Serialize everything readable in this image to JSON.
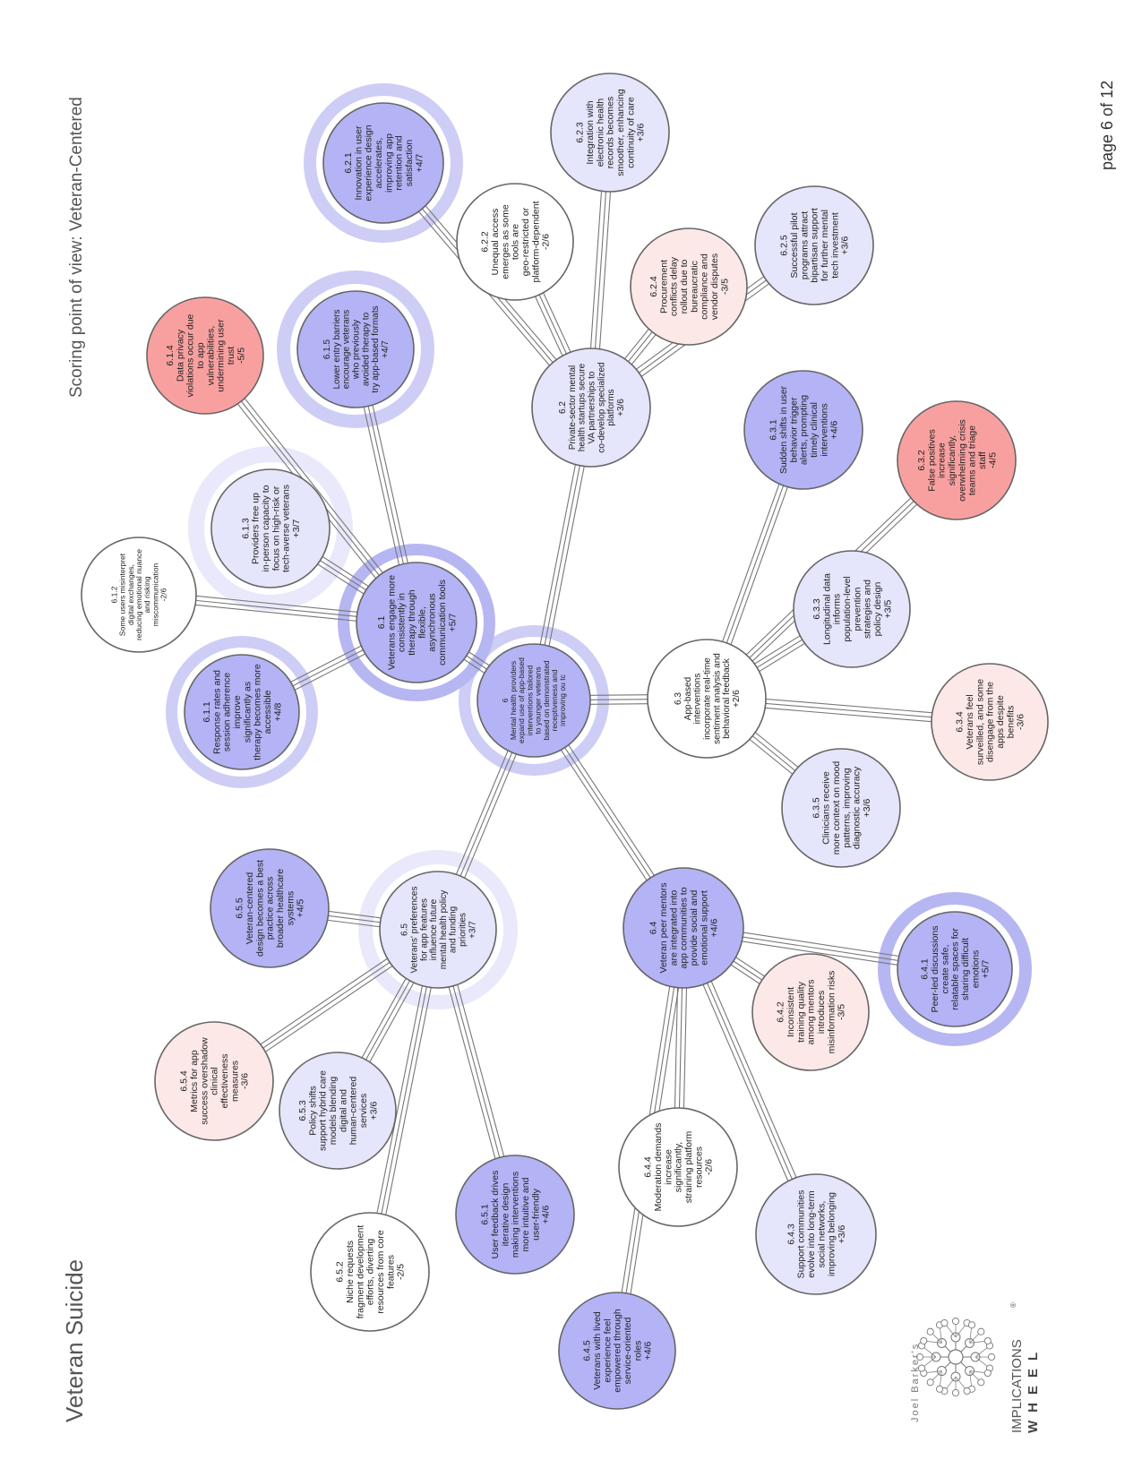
{
  "page": {
    "title": "Veteran Suicide",
    "scoring_point_of_view": "Scoring point of view: Veteran-Centered",
    "page_number": "page 6 of 12"
  },
  "logo": {
    "author": "Joel Barker's",
    "line1": "IMPLICATIONS",
    "line2": "WHEEL",
    "mark": "®"
  },
  "colors": {
    "strong_positive": "#b3b3f5",
    "mild_positive": "#e5e5fb",
    "neutral": "#ffffff",
    "mild_negative": "#fde8e8",
    "strong_negative": "#f8a0a0",
    "ring_strong": "#b6b6f2",
    "ring_medium": "#cdcdf6",
    "ring_light": "#e9e9fb",
    "connector": "#777777",
    "node_border": "#666666"
  },
  "nodes": [
    {
      "id": "6",
      "text": "Mental health providers expand use of app-based interventions tailored to younger veterans based on demonstrated receptiveness and improving ou tc",
      "score": "",
      "tone": "strong_positive",
      "ring": "ring_medium"
    },
    {
      "id": "6.1",
      "text": "Veterans engage more consistently in therapy through flexible, asynchronous communication tools",
      "score": "+5/7",
      "tone": "strong_positive",
      "ring": "ring_strong"
    },
    {
      "id": "6.1.1",
      "text": "Response rates and session adherence improve significantly as therapy becomes more accessible",
      "score": "+4/8",
      "tone": "strong_positive",
      "ring": "ring_medium"
    },
    {
      "id": "6.1.2",
      "text": "Some users misinterpret digital exchanges, reducing emotional nuance and risking miscommunication",
      "score": "-2/6",
      "tone": "neutral",
      "ring": ""
    },
    {
      "id": "6.1.3",
      "text": "Providers free up in-person capacity to focus on high-risk or tech-averse veterans",
      "score": "+3/7",
      "tone": "mild_positive",
      "ring": "ring_light"
    },
    {
      "id": "6.1.4",
      "text": "Data privacy violations occur due to app vulnerabilities, undermining user trust",
      "score": "-5/5",
      "tone": "strong_negative",
      "ring": ""
    },
    {
      "id": "6.1.5",
      "text": "Lower entry barriers encourage veterans who previously avoided therapy to try app-based formats",
      "score": "+4/7",
      "tone": "strong_positive",
      "ring": "ring_medium"
    },
    {
      "id": "6.2",
      "text": "Private-sector mental health startups secure VA partnerships to co-develop specialized platforms",
      "score": "+3/6",
      "tone": "mild_positive",
      "ring": ""
    },
    {
      "id": "6.2.1",
      "text": "Innovation in user experience design accelerates, improving app retention and satisfaction",
      "score": "+4/7",
      "tone": "strong_positive",
      "ring": "ring_medium"
    },
    {
      "id": "6.2.2",
      "text": "Unequal access emerges as some tools are geo-restricted or platform-dependent",
      "score": "-2/6",
      "tone": "neutral",
      "ring": ""
    },
    {
      "id": "6.2.3",
      "text": "Integration with electronic health records becomes smoother, enhancing continuity of care",
      "score": "+3/6",
      "tone": "mild_positive",
      "ring": ""
    },
    {
      "id": "6.2.4",
      "text": "Procurement conflicts delay rollout due to bureaucratic compliance and vendor disputes",
      "score": "-3/5",
      "tone": "mild_negative",
      "ring": ""
    },
    {
      "id": "6.2.5",
      "text": "Successful pilot programs attract bipartisan support for further mental tech investment",
      "score": "+3/6",
      "tone": "mild_positive",
      "ring": ""
    },
    {
      "id": "6.3",
      "text": "App-based interventions incorporate real-time sentiment analysis and behavioral feedback",
      "score": "+2/6",
      "tone": "neutral",
      "ring": ""
    },
    {
      "id": "6.3.1",
      "text": "Sudden shifts in user behavior trigger alerts, prompting timely clinical interventions",
      "score": "+4/6",
      "tone": "strong_positive",
      "ring": ""
    },
    {
      "id": "6.3.2",
      "text": "False positives increase significantly, overwhelming crisis teams and triage staff",
      "score": "-4/5",
      "tone": "strong_negative",
      "ring": ""
    },
    {
      "id": "6.3.3",
      "text": "Longitudinal data informs population-level prevention strategies and policy design",
      "score": "+3/5",
      "tone": "mild_positive",
      "ring": ""
    },
    {
      "id": "6.3.4",
      "text": "Veterans feel surveilled, and some disengage from the apps despite benefits",
      "score": "-3/6",
      "tone": "mild_negative",
      "ring": ""
    },
    {
      "id": "6.3.5",
      "text": "Clinicians receive more context on mood patterns, improving diagnostic accuracy",
      "score": "+3/6",
      "tone": "mild_positive",
      "ring": ""
    },
    {
      "id": "6.4",
      "text": "Veteran peer mentors are integrated into app communities to provide social and emotional support",
      "score": "+4/6",
      "tone": "strong_positive",
      "ring": ""
    },
    {
      "id": "6.4.1",
      "text": "Peer-led discussions create safe, relatable spaces for sharing difficult emotions",
      "score": "+5/7",
      "tone": "strong_positive",
      "ring": "ring_strong"
    },
    {
      "id": "6.4.2",
      "text": "Inconsistent training quality among mentors introduces misinformation risks",
      "score": "-3/5",
      "tone": "mild_negative",
      "ring": ""
    },
    {
      "id": "6.4.3",
      "text": "Support communities evolve into long-term social networks, improving belonging",
      "score": "+3/6",
      "tone": "mild_positive",
      "ring": ""
    },
    {
      "id": "6.4.4",
      "text": "Moderation demands increase significantly, straining platform resources",
      "score": "-2/6",
      "tone": "neutral",
      "ring": ""
    },
    {
      "id": "6.4.5",
      "text": "Veterans with lived experience feel empowered through service-oriented roles",
      "score": "+4/6",
      "tone": "strong_positive",
      "ring": ""
    },
    {
      "id": "6.5",
      "text": "Veterans' preferences for app features influence future mental health policy and funding priorities",
      "score": "+3/7",
      "tone": "mild_positive",
      "ring": "ring_light"
    },
    {
      "id": "6.5.1",
      "text": "User feedback drives iterative design making interventions more intuitive and user-friendly",
      "score": "+4/6",
      "tone": "strong_positive",
      "ring": ""
    },
    {
      "id": "6.5.2",
      "text": "Niche requests fragment development efforts, diverting resources from core features",
      "score": "-2/5",
      "tone": "neutral",
      "ring": ""
    },
    {
      "id": "6.5.3",
      "text": "Policy shifts support hybrid care models blending digital and human-centered services",
      "score": "+3/6",
      "tone": "mild_positive",
      "ring": ""
    },
    {
      "id": "6.5.4",
      "text": "Metrics for app success overshadow clinical effectiveness measures",
      "score": "-3/6",
      "tone": "mild_negative",
      "ring": ""
    },
    {
      "id": "6.5.5",
      "text": "Veteran-centered design becomes a best practice across broader healthcare systems",
      "score": "+4/5",
      "tone": "strong_positive",
      "ring": ""
    }
  ]
}
